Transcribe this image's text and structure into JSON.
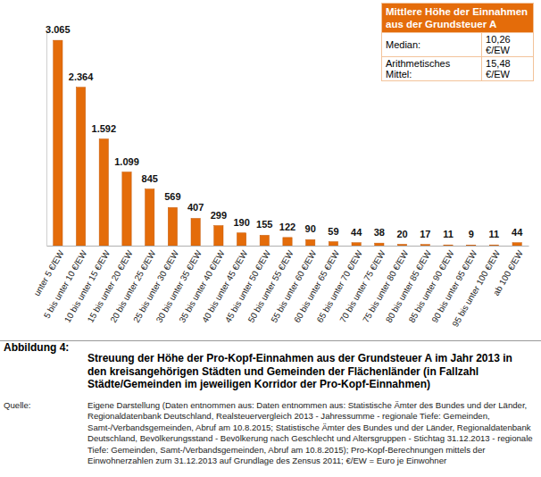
{
  "chart_data": {
    "type": "bar",
    "caption_label": "Abbildung 4:",
    "title": "Streuung der Höhe der Pro-Kopf-Einnahmen aus der Grundsteuer A im Jahr 2013 in den kreisangehörigen Städten und Gemeinden der Flächenländer (in Fallzahl Städte/Gemeinden im jeweiligen Korridor der Pro-Kopf-Einnahmen)",
    "source_label": "Quelle:",
    "source": "Eigene Darstellung (Daten entnommen aus: Daten entnommen aus: Statistische Ämter des Bundes und der Länder, Regionaldatenbank Deutschland, Realsteuervergleich 2013 - Jahressumme - regionale Tiefe: Gemeinden, Samt-/Verbandsgemeinden, Abruf am 10.8.2015; Statistische Ämter des Bundes und der Länder, Regionaldatenbank Deutschland, Bevölkerungsstand - Bevölkerung nach Geschlecht und Altersgruppen - Stichtag 31.12.2013 - regionale Tiefe: Gemeinden, Samt-/Verbandsgemeinden, Abruf am 10.8.2015); Pro-Kopf-Berechnungen mittels der Einwohnerzahlen zum 31.12.2013 auf Grundlage des Zensus 2011; €/EW = Euro je Einwohner",
    "annotations": {
      "title": "Mittlere Höhe der Einnahmen aus der Grundsteuer A",
      "rows": [
        {
          "label": "Median:",
          "text": "10,26 €/EW"
        },
        {
          "label": "Arithmetisches Mittel:",
          "text": "15,48 €/EW"
        }
      ]
    },
    "categories": [
      "unter 5 €/EW",
      "5 bis unter 10 €/EW",
      "10 bis unter 15 €/EW",
      "15 bis unter 20 €/EW",
      "20 bis unter 25 €/EW",
      "25 bis unter 30 €/EW",
      "30 bis unter 35 €/EW",
      "35 bis unter 40 €/EW",
      "40 bis unter 45 €/EW",
      "45 bis unter 50 €/EW",
      "50 bis unter 55 €/EW",
      "55 bis unter 60 €/EW",
      "60 bis unter 65 €/EW",
      "65 bis unter 70 €/EW",
      "70 bis unter 75 €/EW",
      "75 bis unter 80 €/EW",
      "80 bis unter 85 €/EW",
      "85 bis unter 90 €/EW",
      "90 bis unter 95 €/EW",
      "95 bis unter 100 €/EW",
      "ab 100 €/EW"
    ],
    "values": [
      3065,
      2364,
      1592,
      1099,
      845,
      569,
      407,
      299,
      190,
      155,
      122,
      90,
      59,
      44,
      38,
      20,
      17,
      11,
      9,
      11,
      44
    ],
    "value_labels": [
      "3.065",
      "2.364",
      "1.592",
      "1.099",
      "845",
      "569",
      "407",
      "299",
      "190",
      "155",
      "122",
      "90",
      "59",
      "44",
      "38",
      "20",
      "17",
      "11",
      "9",
      "11",
      "44"
    ],
    "data_labels": true,
    "color": "#e46c0a",
    "ylim": [
      0,
      3200
    ],
    "yticks": [],
    "tick_labels": "x",
    "grid": false
  }
}
